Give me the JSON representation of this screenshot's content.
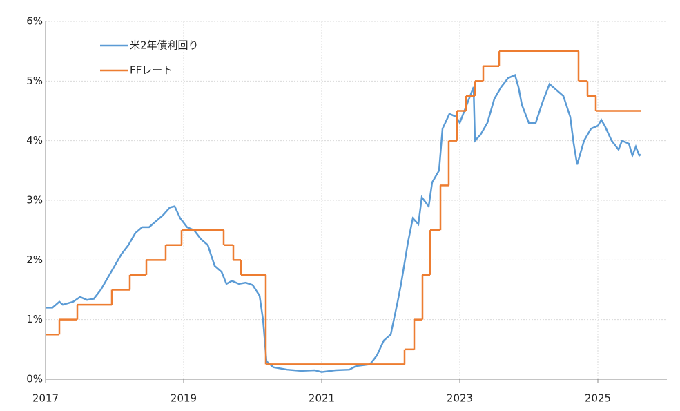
{
  "chart_data": {
    "type": "line",
    "xlim": [
      2017,
      2026
    ],
    "xticks": [
      2017,
      2019,
      2021,
      2023,
      2025
    ],
    "ylim": [
      0,
      6
    ],
    "yticks": [
      {
        "value": 0,
        "label": "0%"
      },
      {
        "value": 1,
        "label": "1%"
      },
      {
        "value": 2,
        "label": "2%"
      },
      {
        "value": 3,
        "label": "3%"
      },
      {
        "value": 4,
        "label": "4%"
      },
      {
        "value": 5,
        "label": "5%"
      },
      {
        "value": 6,
        "label": "6%"
      }
    ],
    "grid": true,
    "legend": "upper left",
    "series": [
      {
        "name": "米2年債利回り",
        "color": "#5b9bd5",
        "step": false,
        "x": [
          2017.0,
          2017.1,
          2017.2,
          2017.25,
          2017.4,
          2017.5,
          2017.6,
          2017.7,
          2017.8,
          2017.9,
          2018.0,
          2018.1,
          2018.2,
          2018.3,
          2018.4,
          2018.5,
          2018.6,
          2018.7,
          2018.8,
          2018.87,
          2018.95,
          2019.05,
          2019.15,
          2019.25,
          2019.35,
          2019.45,
          2019.55,
          2019.62,
          2019.7,
          2019.8,
          2019.9,
          2020.0,
          2020.1,
          2020.15,
          2020.2,
          2020.3,
          2020.5,
          2020.7,
          2020.9,
          2021.0,
          2021.2,
          2021.4,
          2021.5,
          2021.7,
          2021.8,
          2021.9,
          2022.0,
          2022.1,
          2022.15,
          2022.25,
          2022.32,
          2022.4,
          2022.45,
          2022.55,
          2022.6,
          2022.7,
          2022.75,
          2022.85,
          2022.95,
          2023.0,
          2023.1,
          2023.2,
          2023.22,
          2023.3,
          2023.4,
          2023.5,
          2023.6,
          2023.7,
          2023.8,
          2023.85,
          2023.9,
          2024.0,
          2024.1,
          2024.2,
          2024.3,
          2024.4,
          2024.5,
          2024.6,
          2024.65,
          2024.7,
          2024.8,
          2024.9,
          2025.0,
          2025.05,
          2025.1,
          2025.2,
          2025.3,
          2025.35,
          2025.45,
          2025.5,
          2025.55,
          2025.6,
          2025.62
        ],
        "values": [
          1.2,
          1.2,
          1.3,
          1.25,
          1.3,
          1.38,
          1.33,
          1.35,
          1.5,
          1.7,
          1.9,
          2.1,
          2.25,
          2.45,
          2.55,
          2.55,
          2.65,
          2.75,
          2.88,
          2.9,
          2.7,
          2.55,
          2.5,
          2.35,
          2.25,
          1.9,
          1.8,
          1.6,
          1.65,
          1.6,
          1.62,
          1.58,
          1.4,
          1.0,
          0.3,
          0.2,
          0.16,
          0.14,
          0.15,
          0.12,
          0.15,
          0.16,
          0.22,
          0.25,
          0.4,
          0.65,
          0.75,
          1.3,
          1.6,
          2.3,
          2.7,
          2.6,
          3.05,
          2.9,
          3.3,
          3.5,
          4.2,
          4.45,
          4.4,
          4.3,
          4.6,
          4.9,
          4.0,
          4.1,
          4.3,
          4.7,
          4.9,
          5.05,
          5.1,
          4.9,
          4.6,
          4.3,
          4.3,
          4.65,
          4.95,
          4.85,
          4.75,
          4.4,
          3.95,
          3.6,
          4.0,
          4.2,
          4.25,
          4.35,
          4.25,
          4.0,
          3.85,
          4.0,
          3.95,
          3.75,
          3.9,
          3.75,
          3.77
        ]
      },
      {
        "name": "FFレート",
        "color": "#ed7d31",
        "step": true,
        "x": [
          2017.0,
          2017.2,
          2017.46,
          2017.96,
          2018.22,
          2018.46,
          2018.74,
          2018.97,
          2019.58,
          2019.72,
          2019.83,
          2020.19,
          2022.2,
          2022.34,
          2022.46,
          2022.57,
          2022.72,
          2022.84,
          2022.96,
          2023.09,
          2023.22,
          2023.34,
          2023.57,
          2024.72,
          2024.85,
          2024.97,
          2025.62
        ],
        "values": [
          0.75,
          1.0,
          1.25,
          1.5,
          1.75,
          2.0,
          2.25,
          2.5,
          2.25,
          2.0,
          1.75,
          0.25,
          0.5,
          1.0,
          1.75,
          2.5,
          3.25,
          4.0,
          4.5,
          4.75,
          5.0,
          5.25,
          5.5,
          5.0,
          4.75,
          4.5,
          4.5
        ]
      }
    ]
  }
}
